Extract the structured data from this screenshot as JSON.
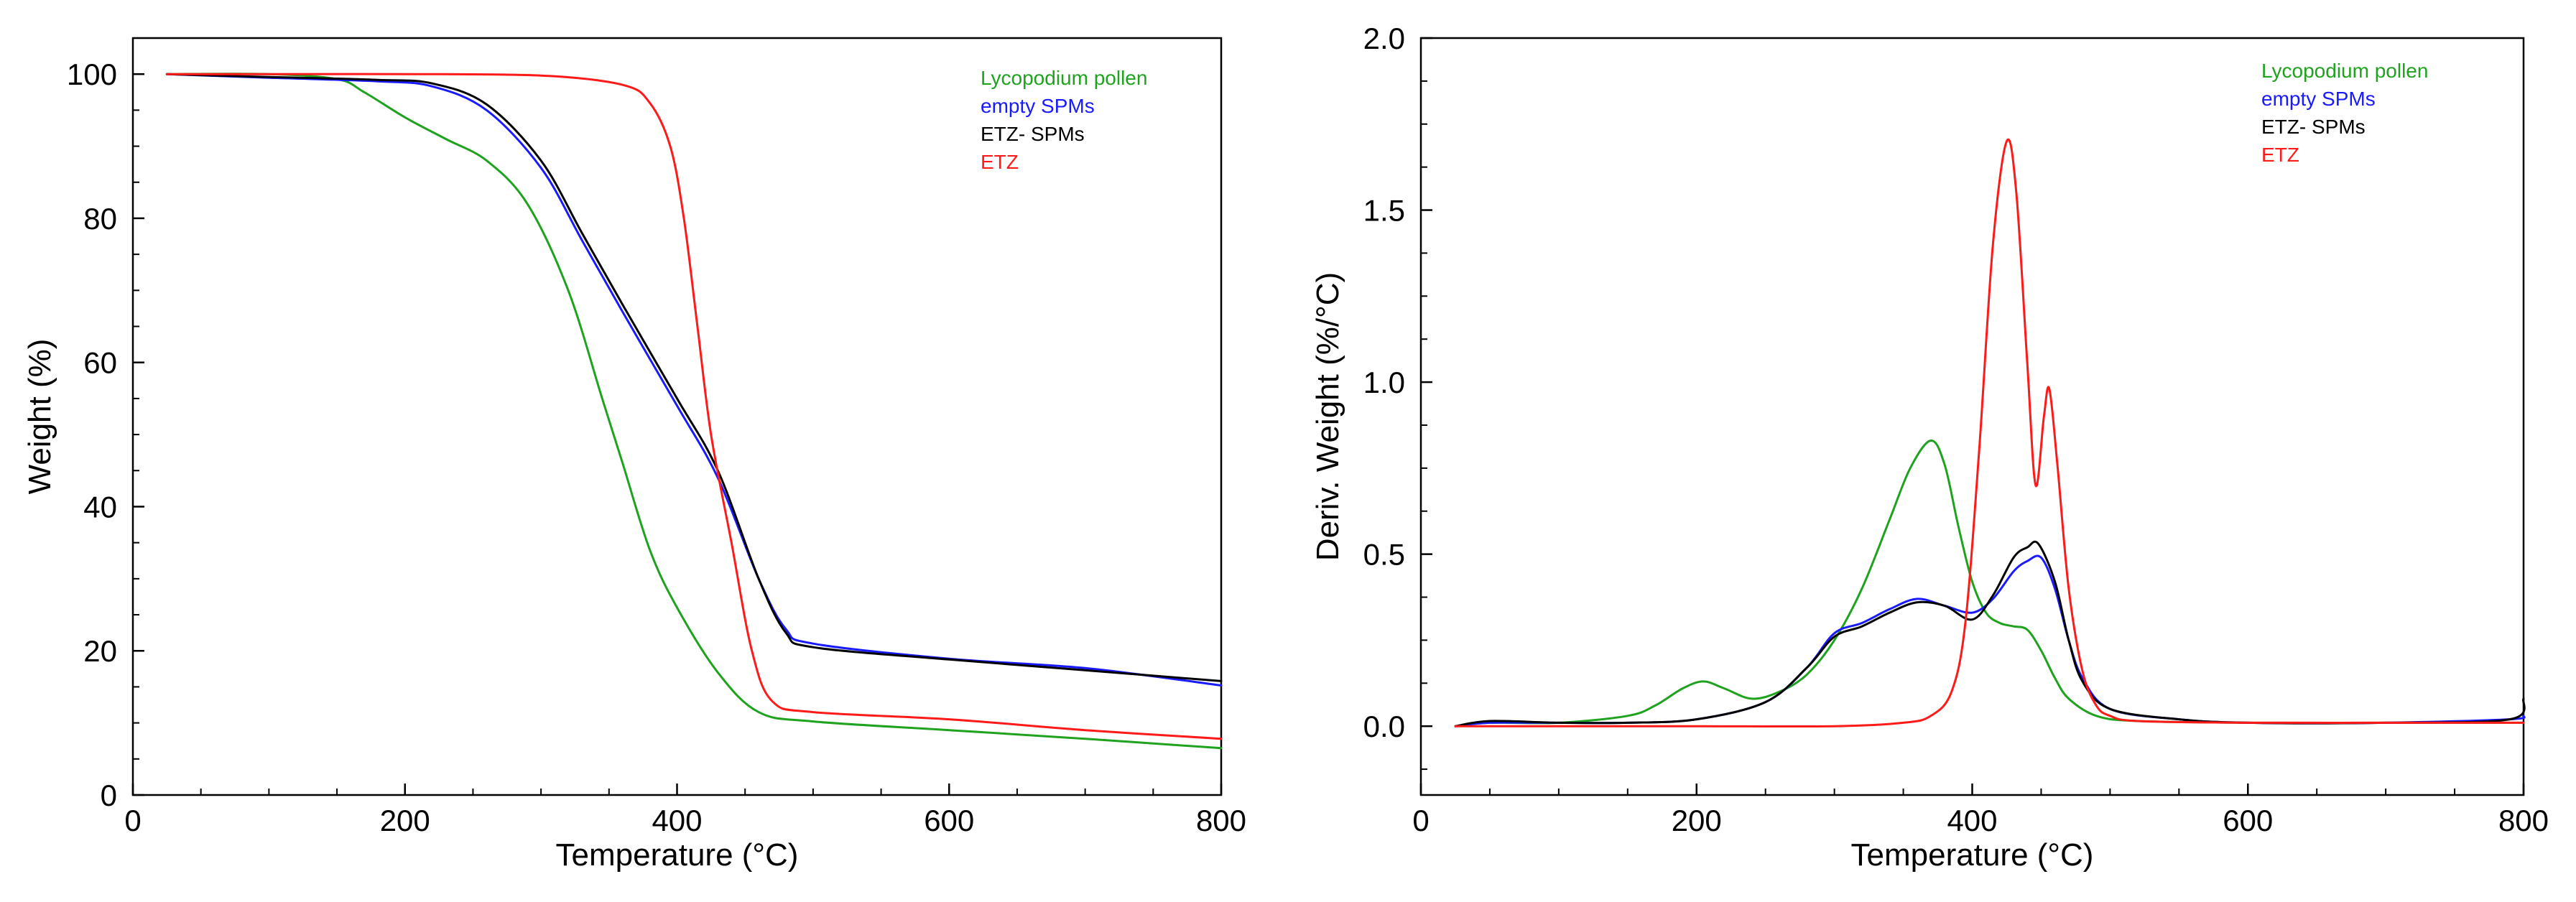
{
  "chart_data": [
    {
      "type": "line",
      "id": "tga",
      "xlabel": "Temperature (°C)",
      "ylabel": "Weight (%)",
      "xlim": [
        0,
        800
      ],
      "ylim": [
        0,
        105
      ],
      "xticks": [
        0,
        200,
        400,
        600,
        800
      ],
      "yticks": [
        0,
        20,
        40,
        60,
        80,
        100
      ],
      "legend_position": "top-right",
      "series": [
        {
          "name": "Lycopodium pollen",
          "color": "#1fa31f",
          "x": [
            25,
            100,
            150,
            170,
            200,
            230,
            260,
            290,
            320,
            345,
            360,
            380,
            400,
            430,
            460,
            500,
            600,
            700,
            800
          ],
          "y": [
            100,
            100,
            99.3,
            97.5,
            94,
            91,
            88,
            82,
            70,
            55,
            46,
            34,
            26,
            17,
            11.5,
            10.2,
            9,
            7.8,
            6.5
          ]
        },
        {
          "name": "empty SPMs",
          "color": "#1a1aff",
          "x": [
            25,
            100,
            180,
            220,
            260,
            300,
            330,
            360,
            400,
            430,
            460,
            480,
            500,
            600,
            700,
            800
          ],
          "y": [
            100,
            99.5,
            99,
            98.3,
            95,
            87,
            77,
            67,
            54,
            44,
            30,
            23,
            21,
            18.9,
            17.6,
            15.2
          ]
        },
        {
          "name": "ETZ- SPMs",
          "color": "#000000",
          "x": [
            25,
            100,
            180,
            220,
            260,
            300,
            330,
            360,
            400,
            430,
            460,
            480,
            500,
            600,
            700,
            800
          ],
          "y": [
            100,
            99.6,
            99.2,
            98.7,
            95.8,
            88,
            78,
            68,
            55,
            45,
            30,
            22.5,
            20.5,
            18.8,
            17.3,
            15.8
          ]
        },
        {
          "name": "ETZ",
          "color": "#ff1a1a",
          "x": [
            25,
            100,
            200,
            300,
            360,
            380,
            395,
            405,
            415,
            425,
            440,
            455,
            470,
            500,
            600,
            700,
            800
          ],
          "y": [
            100,
            100,
            100,
            99.8,
            98.5,
            96,
            90,
            80,
            65,
            50,
            35,
            20,
            13,
            11.5,
            10.5,
            9,
            7.8
          ]
        }
      ]
    },
    {
      "type": "line",
      "id": "dtg",
      "xlabel": "Temperature (°C)",
      "ylabel": "Deriv. Weight (%/°C)",
      "xlim": [
        0,
        800
      ],
      "ylim": [
        -0.2,
        2.0
      ],
      "xticks": [
        0,
        200,
        400,
        600,
        800
      ],
      "yticks": [
        0.0,
        0.5,
        1.0,
        1.5,
        2.0
      ],
      "ytick_labels": [
        "0.0",
        "0.5",
        "1.0",
        "1.5",
        "2.0"
      ],
      "legend_position": "top-right",
      "series": [
        {
          "name": "Lycopodium pollen",
          "color": "#1fa31f",
          "x": [
            25,
            50,
            100,
            150,
            170,
            190,
            205,
            220,
            240,
            260,
            280,
            300,
            320,
            340,
            355,
            370,
            380,
            390,
            400,
            410,
            420,
            430,
            440,
            450,
            460,
            470,
            490,
            520,
            600,
            700,
            800
          ],
          "y": [
            0.0,
            0.01,
            0.01,
            0.03,
            0.06,
            0.11,
            0.13,
            0.11,
            0.08,
            0.1,
            0.15,
            0.25,
            0.4,
            0.6,
            0.75,
            0.83,
            0.76,
            0.58,
            0.42,
            0.33,
            0.3,
            0.29,
            0.28,
            0.22,
            0.14,
            0.08,
            0.03,
            0.015,
            0.01,
            0.01,
            0.01
          ]
        },
        {
          "name": "empty SPMs",
          "color": "#1a1aff",
          "x": [
            25,
            50,
            100,
            150,
            200,
            250,
            280,
            300,
            320,
            340,
            360,
            380,
            400,
            415,
            430,
            440,
            450,
            460,
            470,
            480,
            500,
            550,
            600,
            700,
            790,
            800
          ],
          "y": [
            0.0,
            0.01,
            0.01,
            0.01,
            0.02,
            0.07,
            0.17,
            0.27,
            0.3,
            0.34,
            0.37,
            0.35,
            0.33,
            0.37,
            0.45,
            0.48,
            0.49,
            0.4,
            0.25,
            0.14,
            0.05,
            0.02,
            0.01,
            0.01,
            0.02,
            0.03
          ]
        },
        {
          "name": "ETZ- SPMs",
          "color": "#000000",
          "x": [
            25,
            50,
            100,
            150,
            200,
            250,
            280,
            300,
            320,
            340,
            360,
            380,
            400,
            415,
            430,
            440,
            448,
            460,
            470,
            480,
            500,
            550,
            600,
            700,
            790,
            800
          ],
          "y": [
            0.0,
            0.015,
            0.01,
            0.01,
            0.02,
            0.07,
            0.17,
            0.26,
            0.29,
            0.33,
            0.36,
            0.35,
            0.31,
            0.38,
            0.49,
            0.52,
            0.53,
            0.42,
            0.25,
            0.13,
            0.05,
            0.02,
            0.01,
            0.01,
            0.02,
            0.08
          ]
        },
        {
          "name": "ETZ",
          "color": "#ff1a1a",
          "x": [
            25,
            100,
            200,
            300,
            350,
            370,
            385,
            395,
            405,
            415,
            425,
            432,
            440,
            446,
            452,
            456,
            462,
            470,
            480,
            490,
            500,
            520,
            600,
            700,
            800
          ],
          "y": [
            0.0,
            0.0,
            0.0,
            0.0,
            0.01,
            0.03,
            0.1,
            0.3,
            0.8,
            1.4,
            1.7,
            1.55,
            1.05,
            0.7,
            0.9,
            0.98,
            0.75,
            0.4,
            0.16,
            0.06,
            0.03,
            0.015,
            0.01,
            0.01,
            0.01
          ]
        }
      ]
    }
  ]
}
